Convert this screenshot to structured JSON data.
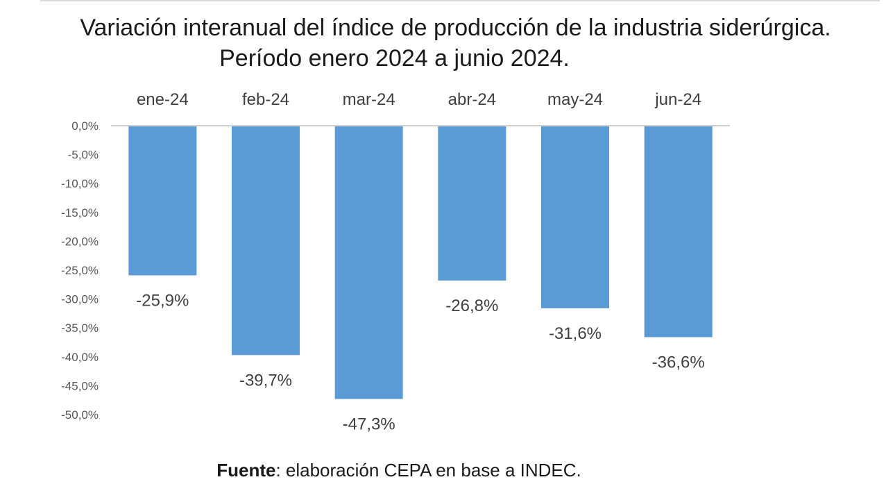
{
  "chart_data": {
    "type": "bar",
    "title": "Variación interanual del índice de producción de la industria siderúrgica.",
    "subtitle": "Período enero 2024 a junio 2024.",
    "categories": [
      "ene-24",
      "feb-24",
      "mar-24",
      "abr-24",
      "may-24",
      "jun-24"
    ],
    "values": [
      -25.9,
      -39.7,
      -47.3,
      -26.8,
      -31.6,
      -36.6
    ],
    "data_labels": [
      "-25,9%",
      "-39,7%",
      "-47,3%",
      "-26,8%",
      "-31,6%",
      "-36,6%"
    ],
    "y_ticks": [
      "0,0%",
      "-5,0%",
      "-10,0%",
      "-15,0%",
      "-20,0%",
      "-25,0%",
      "-30,0%",
      "-35,0%",
      "-40,0%",
      "-45,0%",
      "-50,0%"
    ],
    "ylim": [
      -50,
      0
    ],
    "xlabel": "",
    "ylabel": "",
    "x_axis_position": "top",
    "grid": false,
    "legend": "none",
    "bar_color": "#5b9bd5"
  },
  "footer": {
    "source_label": "Fuente",
    "source_text": ": elaboración CEPA en base a INDEC."
  }
}
